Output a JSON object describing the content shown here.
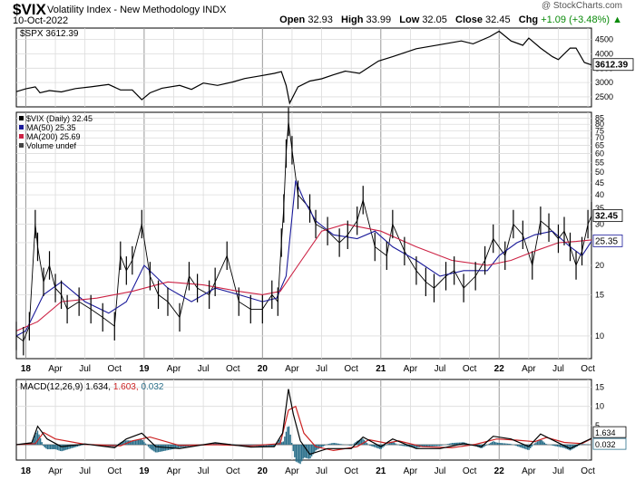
{
  "header": {
    "symbol": "$VIX",
    "name": "Volatility Index - New Methodology",
    "exchange": "INDX",
    "date": "10-Oct-2022",
    "credit": "@ StockCharts.com",
    "open_label": "Open",
    "open": "32.93",
    "high_label": "High",
    "high": "33.99",
    "low_label": "Low",
    "low": "32.05",
    "close_label": "Close",
    "close": "32.45",
    "chg_label": "Chg",
    "chg": "+1.09 (+3.48%)",
    "chg_symbol": "▲"
  },
  "colors": {
    "price": "#000000",
    "ma50": "#1a1a9a",
    "ma200": "#cc2244",
    "macd_line": "#000000",
    "signal_line": "#cc2222",
    "histogram": "#2a6f8a",
    "grid": "#dcdcdc",
    "axis": "#000000"
  },
  "chart_data": [
    {
      "type": "line",
      "panel": "top",
      "title": "$SPX 3612.39",
      "series_name": "$SPX",
      "last_value": "3612.39",
      "y_ticks": [
        "4500",
        "4000",
        "3500",
        "3000",
        "2500"
      ],
      "ylim": [
        2150,
        4900
      ],
      "x_range": [
        2017.92,
        2022.78
      ],
      "x": [
        2017.92,
        2018.0,
        2018.08,
        2018.12,
        2018.2,
        2018.3,
        2018.42,
        2018.55,
        2018.7,
        2018.8,
        2018.9,
        2018.98,
        2019.05,
        2019.15,
        2019.3,
        2019.4,
        2019.5,
        2019.62,
        2019.75,
        2019.85,
        2019.98,
        2020.1,
        2020.16,
        2020.2,
        2020.23,
        2020.3,
        2020.4,
        2020.5,
        2020.6,
        2020.7,
        2020.82,
        2020.98,
        2021.1,
        2021.3,
        2021.5,
        2021.68,
        2021.78,
        2021.92,
        2022.0,
        2022.1,
        2022.2,
        2022.25,
        2022.35,
        2022.45,
        2022.5,
        2022.6,
        2022.65,
        2022.72,
        2022.78
      ],
      "values": [
        2680,
        2780,
        2850,
        2640,
        2720,
        2670,
        2790,
        2850,
        2930,
        2740,
        2740,
        2400,
        2640,
        2800,
        2900,
        2760,
        2980,
        2900,
        3020,
        3140,
        3230,
        3320,
        3380,
        2900,
        2280,
        2850,
        3050,
        3130,
        3270,
        3400,
        3320,
        3750,
        3900,
        4180,
        4320,
        4450,
        4350,
        4600,
        4790,
        4450,
        4300,
        4550,
        4200,
        3900,
        3800,
        4200,
        4200,
        3700,
        3612
      ]
    },
    {
      "type": "line",
      "panel": "middle",
      "title": "$VIX (Daily) 32.45",
      "log_scale": true,
      "y_ticks": [
        "85",
        "80",
        "75",
        "70",
        "65",
        "60",
        "55",
        "50",
        "45",
        "40",
        "35",
        "30",
        "25",
        "20",
        "15",
        "10"
      ],
      "ylim": [
        8,
        90
      ],
      "x_range": [
        2017.92,
        2022.78
      ],
      "x_ticks": [
        "18",
        "Apr",
        "Jul",
        "Oct",
        "19",
        "Apr",
        "Jul",
        "Oct",
        "20",
        "Apr",
        "Jul",
        "Oct",
        "21",
        "Apr",
        "Jul",
        "Oct",
        "22",
        "Apr",
        "Jul",
        "Oct"
      ],
      "legend": [
        "$VIX (Daily) 32.45",
        "MA(50) 25.35",
        "MA(200) 25.69",
        "Volume undef"
      ],
      "series": [
        {
          "name": "$VIX (Daily)",
          "last": "32.45",
          "x": [
            2017.92,
            2017.98,
            2018.03,
            2018.08,
            2018.1,
            2018.15,
            2018.2,
            2018.25,
            2018.3,
            2018.35,
            2018.45,
            2018.55,
            2018.65,
            2018.75,
            2018.8,
            2018.85,
            2018.9,
            2018.98,
            2019.05,
            2019.12,
            2019.2,
            2019.3,
            2019.38,
            2019.45,
            2019.55,
            2019.6,
            2019.7,
            2019.8,
            2019.9,
            2020.0,
            2020.08,
            2020.13,
            2020.16,
            2020.18,
            2020.2,
            2020.22,
            2020.25,
            2020.3,
            2020.4,
            2020.45,
            2020.55,
            2020.65,
            2020.72,
            2020.8,
            2020.85,
            2020.95,
            2021.05,
            2021.1,
            2021.2,
            2021.3,
            2021.38,
            2021.45,
            2021.55,
            2021.62,
            2021.7,
            2021.8,
            2021.88,
            2021.95,
            2022.05,
            2022.12,
            2022.2,
            2022.28,
            2022.35,
            2022.42,
            2022.5,
            2022.55,
            2022.6,
            2022.65,
            2022.7,
            2022.75,
            2022.78
          ],
          "values": [
            10,
            9.5,
            11,
            30,
            24,
            17,
            20,
            16,
            15,
            13,
            14,
            13,
            12,
            11,
            22,
            19,
            21,
            30,
            18,
            15,
            14,
            12,
            18,
            16,
            15,
            17,
            22,
            14,
            13,
            13,
            15,
            14,
            25,
            35,
            60,
            82,
            62,
            40,
            35,
            30,
            28,
            25,
            27,
            31,
            38,
            24,
            22,
            30,
            23,
            19,
            17,
            16,
            18,
            19,
            16,
            18,
            21,
            26,
            22,
            30,
            27,
            20,
            31,
            29,
            26,
            28,
            24,
            20,
            23,
            30,
            32.45
          ]
        },
        {
          "name": "MA(50)",
          "last": "25.35",
          "x": [
            2017.92,
            2018.0,
            2018.15,
            2018.3,
            2018.5,
            2018.7,
            2018.85,
            2019.0,
            2019.2,
            2019.4,
            2019.6,
            2019.8,
            2020.0,
            2020.12,
            2020.2,
            2020.28,
            2020.35,
            2020.45,
            2020.6,
            2020.8,
            2020.95,
            2021.1,
            2021.3,
            2021.5,
            2021.7,
            2021.9,
            2022.0,
            2022.15,
            2022.3,
            2022.45,
            2022.6,
            2022.7,
            2022.78
          ],
          "values": [
            10,
            10.5,
            15,
            17,
            14,
            12.5,
            14,
            20,
            16,
            14,
            16,
            15,
            14,
            14.5,
            18,
            46,
            38,
            31,
            27,
            26,
            28,
            24,
            21,
            18,
            19,
            19,
            22,
            25,
            27,
            28,
            24,
            22,
            25.35
          ]
        },
        {
          "name": "MA(200)",
          "last": "25.69",
          "x": [
            2017.92,
            2018.1,
            2018.3,
            2018.6,
            2018.9,
            2019.2,
            2019.5,
            2019.8,
            2020.0,
            2020.15,
            2020.3,
            2020.5,
            2020.7,
            2021.0,
            2021.3,
            2021.6,
            2021.9,
            2022.1,
            2022.3,
            2022.5,
            2022.65,
            2022.78
          ],
          "values": [
            10.5,
            11.5,
            14,
            14.5,
            15.5,
            17,
            16.5,
            15.5,
            15,
            15.5,
            20,
            28,
            30,
            28,
            24,
            21,
            20,
            21,
            23,
            25,
            25.3,
            25.69
          ]
        }
      ]
    },
    {
      "type": "line",
      "panel": "bottom",
      "title": "MACD(12,26,9) 1.634, 1.603, 0.032",
      "y_ticks": [
        "15",
        "10",
        "5",
        "0"
      ],
      "ylim": [
        -4,
        17
      ],
      "x_range": [
        2017.92,
        2022.78
      ],
      "x_ticks": [
        "18",
        "Apr",
        "Jul",
        "Oct",
        "19",
        "Apr",
        "Jul",
        "Oct",
        "20",
        "Apr",
        "Jul",
        "Oct",
        "21",
        "Apr",
        "Jul",
        "Oct",
        "22",
        "Apr",
        "Jul",
        "Oct"
      ],
      "series": [
        {
          "name": "MACD(12,26,9)",
          "last": "1.634",
          "x": [
            2017.92,
            2018.05,
            2018.1,
            2018.18,
            2018.3,
            2018.5,
            2018.75,
            2018.85,
            2018.98,
            2019.1,
            2019.3,
            2019.6,
            2019.9,
            2020.1,
            2020.17,
            2020.22,
            2020.26,
            2020.32,
            2020.4,
            2020.55,
            2020.75,
            2020.85,
            2021.0,
            2021.1,
            2021.3,
            2021.5,
            2021.7,
            2021.85,
            2021.95,
            2022.1,
            2022.25,
            2022.35,
            2022.5,
            2022.6,
            2022.7,
            2022.78
          ],
          "values": [
            0,
            0.5,
            4.8,
            1.5,
            -0.5,
            0.2,
            -0.8,
            1.5,
            3,
            -0.5,
            -1,
            0.5,
            -0.6,
            -0.5,
            3,
            14.5,
            8,
            1,
            -2.5,
            -1,
            -1,
            2,
            -0.5,
            1.5,
            -1,
            -1,
            0.3,
            -0.5,
            2.2,
            1.5,
            -0.5,
            2.8,
            0.5,
            -1,
            0.5,
            1.634
          ]
        },
        {
          "name": "Signal",
          "last": "1.603",
          "x": [
            2017.92,
            2018.08,
            2018.15,
            2018.25,
            2018.5,
            2018.8,
            2018.9,
            2019.05,
            2019.3,
            2019.6,
            2019.9,
            2020.15,
            2020.22,
            2020.28,
            2020.35,
            2020.45,
            2020.6,
            2020.8,
            2020.9,
            2021.05,
            2021.15,
            2021.35,
            2021.6,
            2021.8,
            2021.98,
            2022.15,
            2022.3,
            2022.4,
            2022.55,
            2022.7,
            2022.78
          ],
          "values": [
            0,
            0.3,
            3.2,
            1.5,
            0.1,
            -0.3,
            1,
            2,
            -0.2,
            0,
            -0.3,
            0.3,
            9,
            10,
            3,
            -0.5,
            -1.5,
            -0.5,
            1.3,
            0.4,
            1,
            -0.5,
            -0.8,
            0.1,
            1.5,
            1.2,
            0.8,
            1.9,
            0.6,
            0.3,
            1.603
          ]
        },
        {
          "name": "Histogram",
          "last": "0.032"
        }
      ]
    }
  ]
}
